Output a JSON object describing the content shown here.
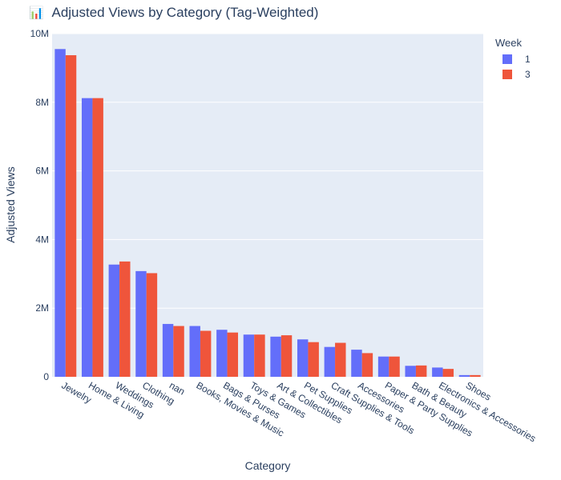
{
  "chart_data": {
    "type": "bar",
    "title": "Adjusted Views by Category (Tag-Weighted)",
    "title_icon": "bar-chart-icon",
    "xlabel": "Category",
    "ylabel": "Adjusted Views",
    "ylim": [
      0,
      10000000
    ],
    "yticks": [
      0,
      2000000,
      4000000,
      6000000,
      8000000,
      10000000
    ],
    "ytick_labels": [
      "0",
      "2M",
      "4M",
      "6M",
      "8M",
      "10M"
    ],
    "grid": true,
    "legend": {
      "title": "Week",
      "placement": "top-right"
    },
    "categories": [
      "Jewelry",
      "Home & Living",
      "Weddings",
      "Clothing",
      "nan",
      "Books, Movies & Music",
      "Bags & Purses",
      "Toys & Games",
      "Art & Collectibles",
      "Pet Supplies",
      "Craft Supplies & Tools",
      "Accessories",
      "Paper & Party Supplies",
      "Bath & Beauty",
      "Electronics & Accessories",
      "Shoes"
    ],
    "series": [
      {
        "name": "1",
        "color": "#636efa",
        "values": [
          9550000,
          8120000,
          3270000,
          3080000,
          1540000,
          1480000,
          1370000,
          1230000,
          1170000,
          1090000,
          870000,
          790000,
          590000,
          320000,
          270000,
          50000
        ]
      },
      {
        "name": "3",
        "color": "#ef553b",
        "values": [
          9370000,
          8120000,
          3360000,
          3020000,
          1480000,
          1340000,
          1290000,
          1230000,
          1210000,
          1010000,
          990000,
          690000,
          590000,
          330000,
          230000,
          50000
        ]
      }
    ]
  }
}
